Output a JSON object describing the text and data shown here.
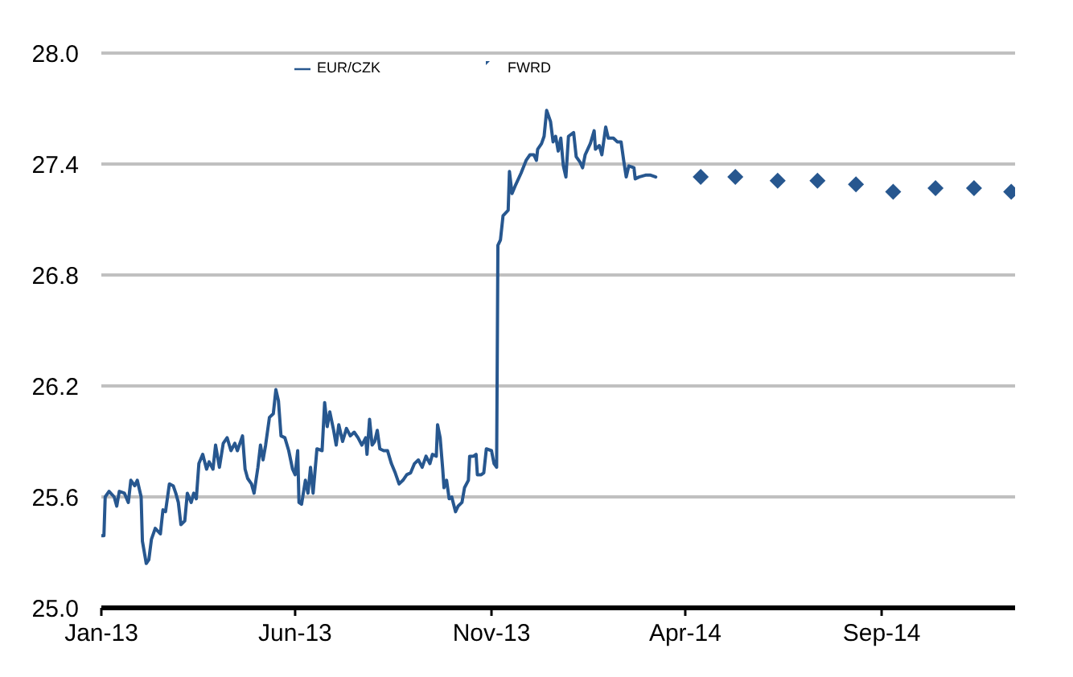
{
  "chart_data": {
    "type": "line",
    "xlim": [
      "2013-01-01",
      "2014-12-14"
    ],
    "xticks": [
      {
        "value": "2013-01-01",
        "label": "Jan-13"
      },
      {
        "value": "2013-06-01",
        "label": "Jun-13"
      },
      {
        "value": "2013-11-01",
        "label": "Nov-13"
      },
      {
        "value": "2014-04-01",
        "label": "Apr-14"
      },
      {
        "value": "2014-09-01",
        "label": "Sep-14"
      }
    ],
    "ylim": [
      25,
      28
    ],
    "yticks": [
      {
        "value": 25,
        "label": "25.0"
      },
      25.6,
      26.2,
      26.8,
      27.4,
      {
        "value": 28,
        "label": "28.0"
      }
    ],
    "grid": "y",
    "legend": "top left",
    "series": [
      {
        "name": "EUR/CZK",
        "type": "line",
        "color": "#27578f",
        "marker": "none",
        "x": [
          "2013-01-01",
          "2013-01-03",
          "2013-01-04",
          "2013-01-07",
          "2013-01-11",
          "2013-01-13",
          "2013-01-15",
          "2013-01-19",
          "2013-01-22",
          "2013-01-24",
          "2013-01-27",
          "2013-01-29",
          "2013-02-01",
          "2013-02-02",
          "2013-02-05",
          "2013-02-07",
          "2013-02-09",
          "2013-02-12",
          "2013-02-16",
          "2013-02-18",
          "2013-02-20",
          "2013-02-23",
          "2013-02-26",
          "2013-02-28",
          "2013-03-02",
          "2013-03-04",
          "2013-03-07",
          "2013-03-09",
          "2013-03-12",
          "2013-03-14",
          "2013-03-16",
          "2013-03-18",
          "2013-03-21",
          "2013-03-24",
          "2013-03-26",
          "2013-03-29",
          "2013-03-31",
          "2013-04-03",
          "2013-04-06",
          "2013-04-09",
          "2013-04-12",
          "2013-04-15",
          "2013-04-17",
          "2013-04-21",
          "2013-04-23",
          "2013-04-25",
          "2013-04-28",
          "2013-04-30",
          "2013-05-03",
          "2013-05-05",
          "2013-05-07",
          "2013-05-09",
          "2013-05-12",
          "2013-05-15",
          "2013-05-17",
          "2013-05-19",
          "2013-05-21",
          "2013-05-24",
          "2013-05-27",
          "2013-05-30",
          "2013-06-01",
          "2013-06-03",
          "2013-06-04",
          "2013-06-06",
          "2013-06-09",
          "2013-06-11",
          "2013-06-13",
          "2013-06-15",
          "2013-06-18",
          "2013-06-22",
          "2013-06-24",
          "2013-06-26",
          "2013-06-28",
          "2013-07-01",
          "2013-07-03",
          "2013-07-05",
          "2013-07-08",
          "2013-07-11",
          "2013-07-14",
          "2013-07-17",
          "2013-07-20",
          "2013-07-23",
          "2013-07-26",
          "2013-07-27",
          "2013-07-29",
          "2013-07-31",
          "2013-08-02",
          "2013-08-04",
          "2013-08-06",
          "2013-08-09",
          "2013-08-12",
          "2013-08-15",
          "2013-08-18",
          "2013-08-21",
          "2013-08-24",
          "2013-08-27",
          "2013-08-30",
          "2013-09-02",
          "2013-09-05",
          "2013-09-08",
          "2013-09-11",
          "2013-09-14",
          "2013-09-16",
          "2013-09-19",
          "2013-09-20",
          "2013-09-22",
          "2013-09-24",
          "2013-09-25",
          "2013-09-27",
          "2013-09-29",
          "2013-10-01",
          "2013-10-04",
          "2013-10-06",
          "2013-10-09",
          "2013-10-11",
          "2013-10-14",
          "2013-10-15",
          "2013-10-18",
          "2013-10-20",
          "2013-10-21",
          "2013-10-24",
          "2013-10-26",
          "2013-10-28",
          "2013-11-01",
          "2013-11-03",
          "2013-11-05",
          "2013-11-06",
          "2013-11-08",
          "2013-11-10",
          "2013-11-14",
          "2013-11-15",
          "2013-11-17",
          "2013-11-20",
          "2013-11-24",
          "2013-11-28",
          "2013-12-01",
          "2013-12-04",
          "2013-12-06",
          "2013-12-07",
          "2013-12-10",
          "2013-12-12",
          "2013-12-14",
          "2013-12-17",
          "2013-12-19",
          "2013-12-21",
          "2013-12-23",
          "2013-12-25",
          "2013-12-27",
          "2013-12-29",
          "2013-12-31",
          "2014-01-04",
          "2014-01-06",
          "2014-01-09",
          "2014-01-11",
          "2014-01-13",
          "2014-01-15",
          "2014-01-17",
          "2014-01-20",
          "2014-01-21",
          "2014-01-24",
          "2014-01-26",
          "2014-01-29",
          "2014-01-31",
          "2014-02-04",
          "2014-02-07",
          "2014-02-10",
          "2014-02-12",
          "2014-02-14",
          "2014-02-16",
          "2014-02-20",
          "2014-02-21",
          "2014-02-24",
          "2014-03-01",
          "2014-03-05",
          "2014-03-09"
        ],
        "values": [
          25.39,
          25.39,
          25.6,
          25.63,
          25.6,
          25.55,
          25.63,
          25.62,
          25.57,
          25.69,
          25.66,
          25.69,
          25.6,
          25.36,
          25.24,
          25.26,
          25.37,
          25.43,
          25.4,
          25.53,
          25.52,
          25.67,
          25.66,
          25.62,
          25.57,
          25.45,
          25.47,
          25.62,
          25.57,
          25.62,
          25.59,
          25.78,
          25.83,
          25.75,
          25.79,
          25.75,
          25.88,
          25.76,
          25.89,
          25.92,
          25.85,
          25.89,
          25.85,
          25.93,
          25.75,
          25.7,
          25.67,
          25.62,
          25.76,
          25.88,
          25.8,
          25.88,
          26.03,
          26.05,
          26.18,
          26.12,
          25.93,
          25.92,
          25.85,
          25.75,
          25.72,
          25.85,
          25.57,
          25.56,
          25.69,
          25.62,
          25.76,
          25.62,
          25.86,
          25.85,
          26.11,
          25.98,
          26.06,
          25.96,
          25.88,
          25.99,
          25.9,
          25.97,
          25.93,
          25.95,
          25.92,
          25.88,
          25.92,
          25.83,
          26.02,
          25.88,
          25.9,
          25.96,
          25.86,
          25.85,
          25.85,
          25.78,
          25.73,
          25.67,
          25.69,
          25.72,
          25.73,
          25.78,
          25.8,
          25.76,
          25.82,
          25.78,
          25.83,
          25.82,
          25.99,
          25.92,
          25.75,
          25.65,
          25.69,
          25.59,
          25.6,
          25.52,
          25.55,
          25.57,
          25.65,
          25.69,
          25.82,
          25.82,
          25.83,
          25.72,
          25.72,
          25.73,
          25.86,
          25.85,
          25.78,
          25.76,
          26.96,
          26.99,
          27.12,
          27.15,
          27.36,
          27.24,
          27.29,
          27.35,
          27.42,
          27.45,
          27.45,
          27.42,
          27.48,
          27.51,
          27.55,
          27.69,
          27.63,
          27.52,
          27.55,
          27.47,
          27.54,
          27.39,
          27.33,
          27.55,
          27.57,
          27.44,
          27.41,
          27.38,
          27.45,
          27.48,
          27.51,
          27.58,
          27.48,
          27.5,
          27.45,
          27.6,
          27.54,
          27.54,
          27.52,
          27.52,
          27.42,
          27.33,
          27.39,
          27.38,
          27.32,
          27.33,
          27.34,
          27.34,
          27.33
        ]
      },
      {
        "name": "FWRD",
        "type": "scatter",
        "color": "#27578f",
        "marker": "diamond",
        "x": [
          "2014-04-13",
          "2014-05-10",
          "2014-06-12",
          "2014-07-13",
          "2014-08-12",
          "2014-09-10",
          "2014-10-13",
          "2014-11-12",
          "2014-12-11"
        ],
        "values": [
          27.33,
          27.33,
          27.31,
          27.31,
          27.29,
          27.25,
          27.27,
          27.27,
          27.25
        ]
      }
    ]
  }
}
